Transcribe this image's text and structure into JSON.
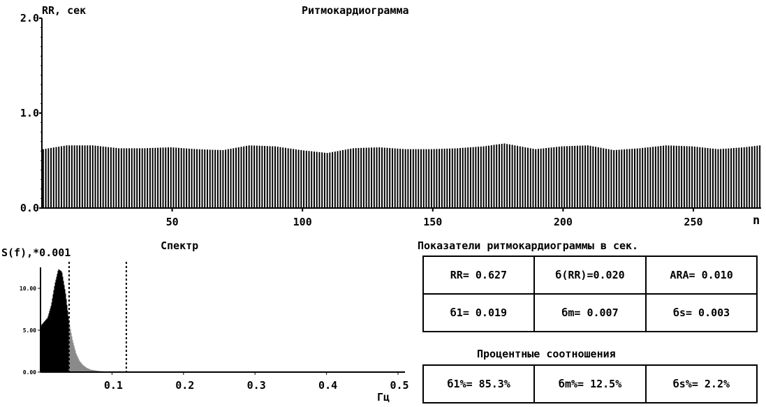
{
  "rhythmogram": {
    "title": "Ритмокардиограмма",
    "ylabel": "RR, сек",
    "xlabel": "n"
  },
  "spectrum": {
    "title": "Спектр",
    "ylabel": "S(f),*0.001",
    "xlabel": "Гц"
  },
  "indicators": {
    "title": "Показатели ритмокардиограммы в сек.",
    "rows": [
      [
        "RR= 0.627",
        "б(RR)=0.020",
        "АRA= 0.010"
      ],
      [
        "б1= 0.019",
        "бm= 0.007",
        "бs= 0.003"
      ]
    ],
    "percent_title": "Процентные соотношения",
    "percent_row": [
      "б1%= 85.3%",
      "бm%= 12.5%",
      "бs%=  2.2%"
    ]
  },
  "chart_data": [
    {
      "type": "bar",
      "title": "Ритмокардиограмма",
      "ylabel": "RR, сек",
      "xlabel": "n",
      "ylim": [
        0.0,
        2.0
      ],
      "xlim": [
        0,
        276
      ],
      "yticks": [
        0.0,
        1.0,
        2.0
      ],
      "ytick_labels": [
        "0.0",
        "1.0",
        "2.0"
      ],
      "xticks": [
        50,
        100,
        150,
        200,
        250
      ],
      "xtick_labels": [
        "50",
        "100",
        "150",
        "200",
        "250"
      ],
      "series": [
        {
          "x": [
            1,
            10,
            20,
            30,
            40,
            50,
            60,
            70,
            80,
            90,
            100,
            110,
            120,
            130,
            140,
            150,
            160,
            170,
            178,
            190,
            200,
            210,
            220,
            230,
            240,
            250,
            260,
            270,
            276
          ],
          "values": [
            0.62,
            0.66,
            0.66,
            0.63,
            0.63,
            0.64,
            0.62,
            0.61,
            0.66,
            0.65,
            0.61,
            0.58,
            0.63,
            0.64,
            0.62,
            0.62,
            0.63,
            0.65,
            0.68,
            0.62,
            0.65,
            0.66,
            0.61,
            0.63,
            0.66,
            0.65,
            0.62,
            0.64,
            0.66
          ]
        }
      ],
      "bar_color": "#000000",
      "grid": false
    },
    {
      "type": "area",
      "title": "Спектр",
      "ylabel": "S(f),*0.001",
      "xlabel": "Гц",
      "xlim": [
        0.0,
        0.5
      ],
      "ylim": [
        0,
        12.5
      ],
      "yticks": [
        0,
        5,
        10
      ],
      "ytick_labels": [
        "0.00",
        "5.00",
        "10.00"
      ],
      "xticks": [
        0.1,
        0.2,
        0.3,
        0.4,
        0.5
      ],
      "xtick_labels": [
        "0.1",
        "0.2",
        "0.3",
        "0.4",
        "0.5"
      ],
      "band_limits": [
        0.04,
        0.12
      ],
      "series": [
        {
          "x": [
            0.0,
            0.005,
            0.01,
            0.015,
            0.02,
            0.025,
            0.03,
            0.035,
            0.04,
            0.045,
            0.05,
            0.055,
            0.06,
            0.065,
            0.07,
            0.08,
            0.09,
            0.1,
            0.12,
            0.15,
            0.2
          ],
          "values": [
            5.5,
            6.0,
            6.5,
            8.0,
            10.5,
            12.3,
            12.0,
            9.5,
            6.0,
            3.8,
            2.2,
            1.3,
            0.8,
            0.5,
            0.3,
            0.15,
            0.08,
            0.04,
            0.02,
            0.0,
            0.0
          ]
        }
      ],
      "colors": {
        "vlf": "#000000",
        "lf": "#8a8a8a"
      },
      "grid": false
    }
  ]
}
